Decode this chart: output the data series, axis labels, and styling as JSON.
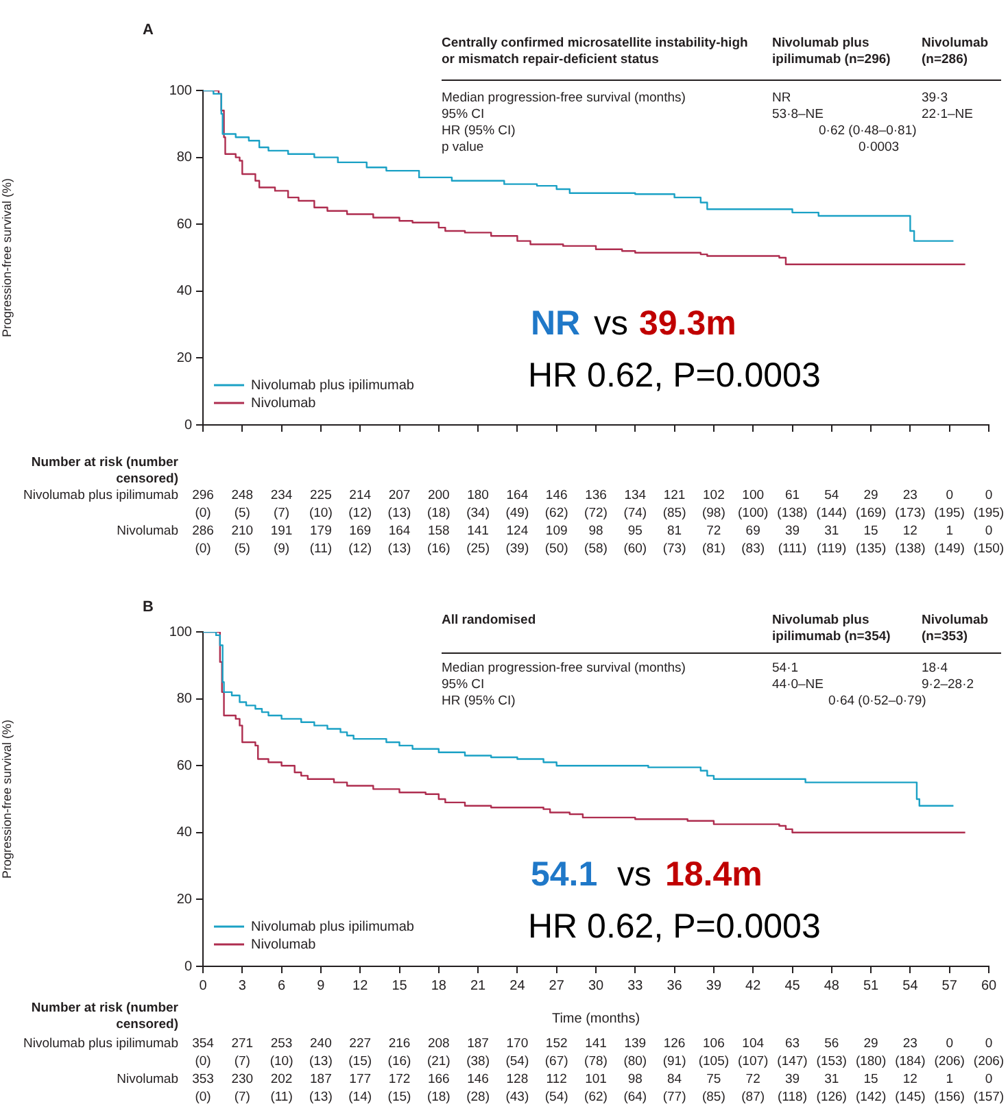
{
  "chart_data": [
    {
      "type": "step",
      "title": "A",
      "ylabel": "Progression-free survival (%)",
      "xlim": [
        0,
        60
      ],
      "xticks": [
        0,
        3,
        6,
        9,
        12,
        15,
        18,
        21,
        24,
        27,
        30,
        33,
        36,
        39,
        42,
        45,
        48,
        51,
        54,
        57,
        60
      ],
      "ylim": [
        0,
        100
      ],
      "yticks": [
        0,
        20,
        40,
        60,
        80,
        100
      ],
      "tick_labels": "y",
      "legend": "bottom left",
      "series": [
        {
          "name": "Nivolumab plus ipilimumab",
          "color": "#1ba1c5",
          "x": [
            0,
            0.8,
            1.4,
            1.5,
            2.5,
            3.5,
            4.3,
            5,
            6.5,
            8.5,
            10.3,
            12.5,
            14,
            16.5,
            19,
            23,
            25.5,
            27,
            28,
            33,
            36,
            38,
            38.5,
            45,
            47,
            53.8,
            54,
            54.3,
            57.3
          ],
          "values": [
            100,
            99,
            93,
            87,
            86,
            85,
            83,
            82,
            81,
            80,
            78.5,
            77,
            76,
            74,
            73,
            72,
            71.5,
            70.5,
            69.3,
            69,
            68,
            66.5,
            64.5,
            63.5,
            62.5,
            62.5,
            58,
            55,
            55
          ]
        },
        {
          "name": "Nivolumab",
          "color": "#ae2d4f",
          "x": [
            0,
            1.2,
            1.4,
            1.6,
            1.7,
            2.5,
            2.8,
            3,
            4,
            4.3,
            5.5,
            6.5,
            7.3,
            8.5,
            9.5,
            11,
            13,
            15,
            16,
            18,
            18.5,
            20,
            22,
            24,
            25,
            27.5,
            30,
            32,
            33,
            38,
            38.5,
            44,
            44.5,
            58.2
          ],
          "values": [
            100,
            99,
            94,
            86,
            81,
            80,
            79,
            75,
            73,
            71,
            70,
            68,
            67,
            65,
            64,
            63,
            62,
            61,
            60.5,
            59,
            58,
            57.5,
            56.5,
            55,
            54,
            53.5,
            52.5,
            52,
            51.5,
            51,
            50.5,
            50,
            48,
            48
          ]
        }
      ],
      "annotations": [
        "Centrally confirmed microsatellite instability-high or mismatch repair-deficient status",
        "Nivolumab plus ipilimumab (n=296)",
        "Nivolumab (n=286)",
        "Median progression-free survival (months)",
        "NR",
        "39·3",
        "95% CI",
        "53·8–NE",
        "22·1–NE",
        "HR (95% CI)",
        "0·62 (0·48–0·81)",
        "p value",
        "0·0003",
        "NR",
        "vs",
        "39.3m",
        "HR 0.62, P=0.0003",
        "Number at risk (number censored)",
        "Nivolumab plus ipilimumab",
        "296 248 234 225 214 207 200 180 164 146 136 134 121 102 100 61 54 29 23 0 0",
        "(0) (5) (7) (10) (12) (13) (18) (34) (49) (62) (72) (74) (85) (98) (100) (138) (144) (169) (173) (195) (195)",
        "Nivolumab",
        "286 210 191 179 169 164 158 141 124 109 98 95 81 72 69 39 31 15 12 1 0",
        "(0) (5) (9) (11) (12) (13) (16) (25) (39) (50) (58) (60) (73) (81) (83) (111) (119) (135) (138) (149) (150)"
      ]
    },
    {
      "type": "step",
      "title": "B",
      "xlabel": "Time (months)",
      "ylabel": "Progression-free survival (%)",
      "xlim": [
        0,
        60
      ],
      "xticks": [
        0,
        3,
        6,
        9,
        12,
        15,
        18,
        21,
        24,
        27,
        30,
        33,
        36,
        39,
        42,
        45,
        48,
        51,
        54,
        57,
        60
      ],
      "ylim": [
        0,
        100
      ],
      "yticks": [
        0,
        20,
        40,
        60,
        80,
        100
      ],
      "legend": "bottom left",
      "series": [
        {
          "name": "Nivolumab plus ipilimumab",
          "color": "#1ba1c5",
          "x": [
            0,
            1,
            1.3,
            1.5,
            1.6,
            2.2,
            2.8,
            3.3,
            4,
            4.5,
            5,
            6,
            7.5,
            8.5,
            9.5,
            10.5,
            11,
            11.5,
            14,
            15,
            16,
            18,
            20,
            22,
            24,
            26,
            27,
            33,
            34,
            37,
            38,
            38.5,
            39,
            45,
            46,
            54,
            54.5,
            54.7,
            57.3
          ],
          "values": [
            100,
            99,
            96,
            85,
            82,
            81,
            79,
            78,
            77,
            76,
            75,
            74,
            73,
            72,
            71,
            70,
            69,
            68,
            67,
            66,
            65,
            64,
            63,
            62.5,
            62,
            61,
            60,
            60,
            59.5,
            59.5,
            58.5,
            57,
            56,
            56,
            55,
            55,
            50,
            48,
            48
          ]
        },
        {
          "name": "Nivolumab",
          "color": "#ae2d4f",
          "x": [
            0,
            1.3,
            1.45,
            1.6,
            2.5,
            2.8,
            3,
            4,
            4.2,
            5,
            6,
            7,
            7.5,
            8,
            10,
            11,
            13,
            15,
            17,
            18,
            18.5,
            20,
            22,
            26,
            26.5,
            28,
            29,
            33,
            37,
            39,
            44,
            44.5,
            45,
            58.2
          ],
          "values": [
            100,
            91,
            82,
            75,
            74,
            72,
            67,
            66,
            62,
            61,
            60,
            58,
            57,
            56,
            55,
            54,
            53,
            52,
            51.5,
            50,
            49,
            48,
            47.5,
            47,
            46,
            45.5,
            44.5,
            44,
            43.5,
            42.5,
            42,
            41,
            40,
            40
          ]
        }
      ],
      "annotations": [
        "All randomised",
        "Nivolumab plus ipilimumab (n=354)",
        "Nivolumab (n=353)",
        "Median progression-free survival (months)",
        "54·1",
        "18·4",
        "95% CI",
        "44·0–NE",
        "9·2–28·2",
        "HR (95% CI)",
        "0·64 (0·52–0·79)",
        "54.1",
        "vs",
        "18.4m",
        "HR 0.62, P=0.0003",
        "Number at risk (number censored)",
        "Nivolumab plus ipilimumab",
        "354 271 253 240 227 216 208 187 170 152 141 139 126 106 104 63 56 29 23 0 0",
        "(0) (7) (10) (13) (15) (16) (21) (38) (54) (67) (78) (80) (91) (105) (107) (147) (153) (180) (184) (206) (206)",
        "Nivolumab",
        "353 230 202 187 177 172 166 146 128 112 101 98 84 75 72 39 31 15 12 1 0",
        "(0) (7) (11) (13) (14) (15) (18) (28) (43) (54) (62) (64) (77) (85) (87) (118) (126) (142) (145) (156) (157)"
      ]
    }
  ]
}
